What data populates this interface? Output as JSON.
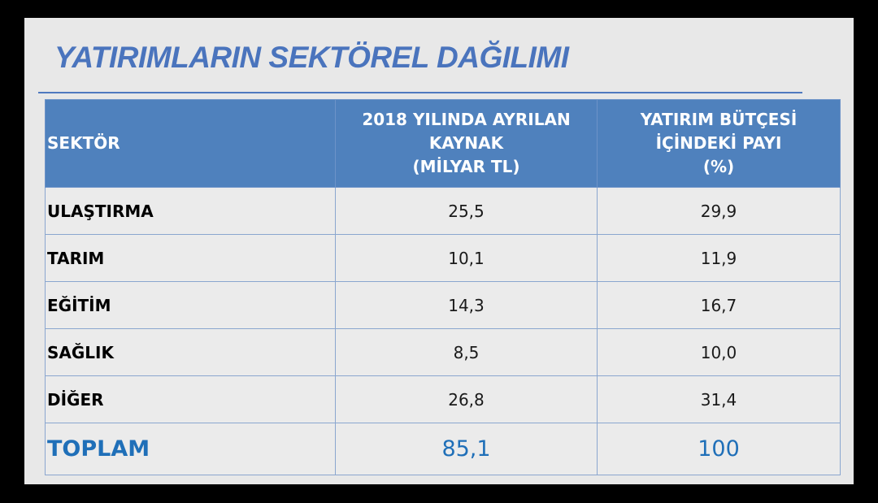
{
  "title": "YATIRIMLARIN SEKTÖREL DAĞILIMI",
  "table": {
    "headers": {
      "sector": "SEKTÖR",
      "allocation_lines": [
        "2018 YILINDA AYRILAN",
        "KAYNAK",
        "(MİLYAR TL)"
      ],
      "share_lines": [
        "YATIRIM BÜTÇESİ",
        "İÇİNDEKİ PAYI",
        "(%)"
      ]
    },
    "rows": [
      {
        "sector": "ULAŞTIRMA",
        "allocation": "25,5",
        "share": "29,9"
      },
      {
        "sector": "TARIM",
        "allocation": "10,1",
        "share": "11,9"
      },
      {
        "sector": "EĞİTİM",
        "allocation": "14,3",
        "share": "16,7"
      },
      {
        "sector": "SAĞLIK",
        "allocation": "8,5",
        "share": "10,0"
      },
      {
        "sector": "DİĞER",
        "allocation": "26,8",
        "share": "31,4"
      }
    ],
    "total": {
      "sector": "TOPLAM",
      "allocation": "85,1",
      "share": "100"
    }
  },
  "colors": {
    "title": "#4a74bd",
    "header_bg": "#4f81bd",
    "total_text": "#1f6fb8",
    "slide_bg": "#e8e8e8"
  }
}
